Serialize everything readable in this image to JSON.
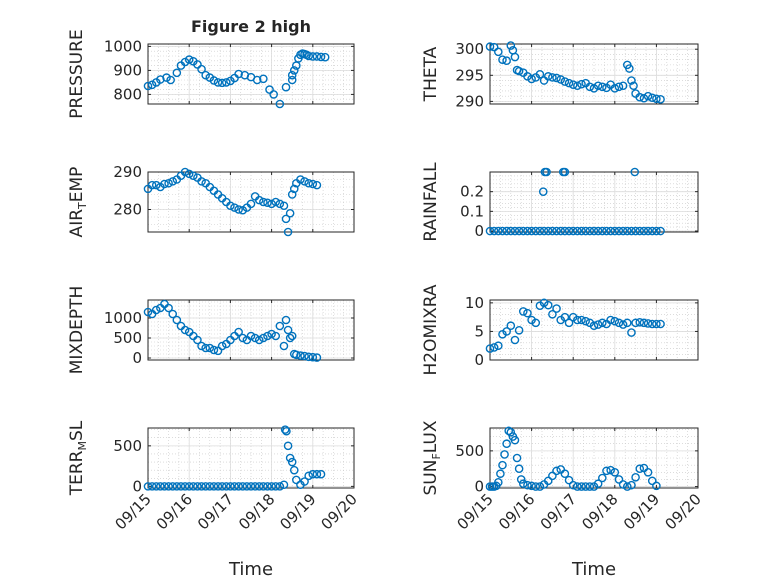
{
  "figure": {
    "title": "Figure 2 high",
    "marker": "circle",
    "colors": {
      "marker": "#0072BD",
      "axes": "#262626",
      "grid": "#c8c8c8",
      "background": "#ffffff"
    }
  },
  "chart_data": [
    {
      "type": "scatter",
      "title": "Figure 2 high",
      "ylabel": "PRESSURE",
      "ylabel_parts": [
        {
          "t": "PRESSURE",
          "sub": false
        }
      ],
      "xlim": [
        0,
        5
      ],
      "ylim": [
        760,
        1010
      ],
      "yticks": [
        800,
        900,
        1000
      ],
      "xticks": [],
      "grid": true,
      "x": [
        0,
        0.1,
        0.2,
        0.3,
        0.45,
        0.55,
        0.7,
        0.8,
        0.9,
        1.0,
        1.1,
        1.2,
        1.3,
        1.4,
        1.5,
        1.6,
        1.7,
        1.8,
        1.9,
        2.0,
        2.1,
        2.2,
        2.35,
        2.5,
        2.65,
        2.8,
        2.95,
        3.05,
        3.2,
        3.35,
        3.5,
        3.5,
        3.55,
        3.6,
        3.65,
        3.7,
        3.75,
        3.8,
        3.85,
        3.9,
        4.0,
        4.1,
        4.2,
        4.3
      ],
      "series": [
        {
          "values": [
            835,
            840,
            850,
            862,
            870,
            860,
            890,
            920,
            935,
            945,
            938,
            925,
            905,
            880,
            870,
            858,
            850,
            848,
            850,
            856,
            868,
            885,
            880,
            872,
            860,
            865,
            820,
            800,
            760,
            830,
            860,
            880,
            900,
            920,
            950,
            965,
            970,
            968,
            965,
            960,
            958,
            958,
            956,
            955
          ]
        }
      ]
    },
    {
      "type": "scatter",
      "title": "",
      "ylabel": "THETA",
      "ylabel_parts": [
        {
          "t": "THETA",
          "sub": false
        }
      ],
      "xlim": [
        0,
        5
      ],
      "ylim": [
        289.5,
        301
      ],
      "yticks": [
        290,
        295,
        300
      ],
      "xticks": [],
      "grid": true,
      "x": [
        0,
        0.1,
        0.2,
        0.3,
        0.4,
        0.5,
        0.55,
        0.6,
        0.65,
        0.7,
        0.8,
        0.9,
        1.0,
        1.1,
        1.2,
        1.3,
        1.4,
        1.5,
        1.6,
        1.7,
        1.8,
        1.9,
        2.0,
        2.1,
        2.2,
        2.3,
        2.4,
        2.5,
        2.6,
        2.7,
        2.8,
        2.9,
        3.0,
        3.1,
        3.2,
        3.3,
        3.35,
        3.4,
        3.45,
        3.5,
        3.6,
        3.7,
        3.8,
        3.9,
        4.0,
        4.1
      ],
      "series": [
        {
          "values": [
            300.5,
            300.4,
            299.5,
            298,
            297.8,
            300.7,
            299.8,
            298.5,
            296,
            295.8,
            295.5,
            294.8,
            294.3,
            294.6,
            295.2,
            294,
            294.8,
            294.6,
            294.5,
            294.2,
            293.8,
            293.5,
            293.2,
            293,
            293.3,
            293.5,
            292.8,
            292.5,
            293,
            292.8,
            292.6,
            293.2,
            292.5,
            292.8,
            293,
            297,
            296.3,
            294,
            293,
            291.5,
            290.8,
            290.6,
            291,
            290.7,
            290.5,
            290.4
          ]
        }
      ]
    },
    {
      "type": "scatter",
      "title": "",
      "ylabel": "AIR_TEMP",
      "ylabel_parts": [
        {
          "t": "AIR",
          "sub": false
        },
        {
          "t": "T",
          "sub": true
        },
        {
          "t": "EMP",
          "sub": false
        }
      ],
      "xlim": [
        0,
        5
      ],
      "ylim": [
        274,
        290
      ],
      "yticks": [
        280,
        290
      ],
      "xticks": [],
      "grid": true,
      "x": [
        0,
        0.1,
        0.2,
        0.3,
        0.4,
        0.5,
        0.6,
        0.7,
        0.8,
        0.9,
        1.0,
        1.1,
        1.2,
        1.3,
        1.4,
        1.5,
        1.6,
        1.7,
        1.8,
        1.9,
        2.0,
        2.1,
        2.2,
        2.3,
        2.4,
        2.5,
        2.6,
        2.7,
        2.8,
        2.9,
        3.0,
        3.1,
        3.2,
        3.3,
        3.35,
        3.4,
        3.45,
        3.5,
        3.55,
        3.6,
        3.7,
        3.8,
        3.9,
        4.0,
        4.1
      ],
      "series": [
        {
          "values": [
            285.5,
            286.5,
            286.5,
            286,
            286.8,
            287,
            287.5,
            288,
            289,
            290,
            289.5,
            289,
            288.5,
            287.5,
            287,
            286,
            285,
            284,
            283,
            282,
            281,
            280.5,
            280,
            279.8,
            280.5,
            281.5,
            283.5,
            282.5,
            282,
            281.8,
            281.5,
            282,
            281.5,
            281,
            277.5,
            274,
            279,
            284,
            285.5,
            287,
            288,
            287.5,
            287,
            286.8,
            286.5
          ]
        }
      ]
    },
    {
      "type": "scatter",
      "title": "",
      "ylabel": "RAINFALL",
      "ylabel_parts": [
        {
          "t": "RAINFALL",
          "sub": false
        }
      ],
      "xlim": [
        0,
        5
      ],
      "ylim": [
        -0.005,
        0.3
      ],
      "yticks": [
        0,
        0.1,
        0.2
      ],
      "xticks": [],
      "grid": true,
      "x": [
        0,
        0.1,
        0.2,
        0.3,
        0.4,
        0.5,
        0.6,
        0.7,
        0.8,
        0.9,
        1.0,
        1.1,
        1.2,
        1.3,
        1.4,
        1.5,
        1.6,
        1.7,
        1.8,
        1.9,
        2.0,
        2.1,
        2.2,
        2.3,
        2.4,
        2.5,
        2.6,
        2.7,
        2.8,
        2.9,
        3.0,
        3.1,
        3.2,
        3.3,
        3.4,
        3.5,
        3.6,
        3.7,
        3.8,
        3.9,
        4.0,
        4.1,
        1.28,
        1.32,
        1.36,
        1.76,
        1.8,
        3.48
      ],
      "series": [
        {
          "values": [
            0,
            0,
            0,
            0,
            0,
            0,
            0,
            0,
            0,
            0,
            0,
            0,
            0,
            0,
            0,
            0,
            0,
            0,
            0,
            0,
            0,
            0,
            0,
            0,
            0,
            0,
            0,
            0,
            0,
            0,
            0,
            0,
            0,
            0,
            0,
            0,
            0,
            0,
            0,
            0,
            0,
            0,
            0.2,
            0.3,
            0.3,
            0.3,
            0.3,
            0.3
          ]
        }
      ]
    },
    {
      "type": "scatter",
      "title": "",
      "ylabel": "MIXDEPTH",
      "ylabel_parts": [
        {
          "t": "MIXDEPTH",
          "sub": false
        }
      ],
      "xlim": [
        0,
        5
      ],
      "ylim": [
        -50,
        1450
      ],
      "yticks": [
        0,
        500,
        1000
      ],
      "xticks": [],
      "grid": true,
      "x": [
        0,
        0.1,
        0.2,
        0.3,
        0.4,
        0.5,
        0.6,
        0.7,
        0.8,
        0.9,
        1.0,
        1.1,
        1.2,
        1.3,
        1.4,
        1.5,
        1.6,
        1.7,
        1.8,
        1.9,
        2.0,
        2.1,
        2.2,
        2.3,
        2.4,
        2.5,
        2.6,
        2.7,
        2.8,
        2.9,
        3.0,
        3.1,
        3.2,
        3.3,
        3.35,
        3.4,
        3.45,
        3.5,
        3.55,
        3.6,
        3.7,
        3.8,
        3.9,
        4.0,
        4.1
      ],
      "series": [
        {
          "values": [
            1150,
            1100,
            1200,
            1250,
            1350,
            1250,
            1100,
            950,
            800,
            700,
            650,
            550,
            450,
            300,
            250,
            250,
            200,
            180,
            300,
            350,
            450,
            550,
            650,
            500,
            450,
            550,
            500,
            450,
            500,
            550,
            600,
            550,
            800,
            300,
            950,
            700,
            500,
            550,
            100,
            80,
            60,
            50,
            30,
            20,
            10
          ]
        }
      ]
    },
    {
      "type": "scatter",
      "title": "",
      "ylabel": "H2OMIXRA",
      "ylabel_parts": [
        {
          "t": "H2OMIXRA",
          "sub": false
        }
      ],
      "xlim": [
        0,
        5
      ],
      "ylim": [
        0,
        10.5
      ],
      "yticks": [
        0,
        5,
        10
      ],
      "xticks": [],
      "grid": true,
      "x": [
        0,
        0.1,
        0.2,
        0.3,
        0.4,
        0.5,
        0.6,
        0.7,
        0.8,
        0.9,
        1.0,
        1.1,
        1.2,
        1.3,
        1.4,
        1.5,
        1.6,
        1.7,
        1.8,
        1.9,
        2.0,
        2.1,
        2.2,
        2.3,
        2.4,
        2.5,
        2.6,
        2.7,
        2.8,
        2.9,
        3.0,
        3.1,
        3.2,
        3.3,
        3.4,
        3.5,
        3.6,
        3.7,
        3.8,
        3.9,
        4.0,
        4.1
      ],
      "series": [
        {
          "values": [
            2,
            2.2,
            2.5,
            4.5,
            5,
            6,
            3.5,
            5.2,
            8.5,
            8.2,
            7,
            6.5,
            9.5,
            10,
            9.6,
            8,
            9,
            7,
            7.5,
            6.5,
            7.5,
            7,
            7,
            6.8,
            6.5,
            6,
            6.2,
            6.5,
            6.3,
            7,
            6.8,
            6.5,
            6.2,
            6.5,
            4.8,
            6.5,
            6.6,
            6.5,
            6.4,
            6.3,
            6.3,
            6.3
          ]
        }
      ]
    },
    {
      "type": "scatter",
      "title": "",
      "ylabel": "TERR_MSL",
      "ylabel_parts": [
        {
          "t": "TERR",
          "sub": false
        },
        {
          "t": "M",
          "sub": true
        },
        {
          "t": "SL",
          "sub": false
        }
      ],
      "xlim": [
        0,
        5
      ],
      "ylim": [
        -20,
        720
      ],
      "yticks": [
        0,
        500
      ],
      "xticks": [
        "09/15",
        "09/16",
        "09/17",
        "09/18",
        "09/19",
        "09/20"
      ],
      "xlabel": "Time",
      "grid": true,
      "x": [
        0,
        0.1,
        0.2,
        0.3,
        0.4,
        0.5,
        0.6,
        0.7,
        0.8,
        0.9,
        1.0,
        1.1,
        1.2,
        1.3,
        1.4,
        1.5,
        1.6,
        1.7,
        1.8,
        1.9,
        2.0,
        2.1,
        2.2,
        2.3,
        2.4,
        2.5,
        2.6,
        2.7,
        2.8,
        2.9,
        3.0,
        3.1,
        3.2,
        3.3,
        3.33,
        3.36,
        3.4,
        3.45,
        3.5,
        3.55,
        3.6,
        3.7,
        3.8,
        3.9,
        4.0,
        4.1,
        4.2
      ],
      "series": [
        {
          "values": [
            0,
            0,
            0,
            0,
            0,
            0,
            0,
            0,
            0,
            0,
            0,
            0,
            0,
            0,
            0,
            0,
            0,
            0,
            0,
            0,
            0,
            0,
            0,
            0,
            0,
            0,
            0,
            0,
            0,
            0,
            0,
            0,
            0,
            20,
            700,
            680,
            500,
            350,
            300,
            200,
            80,
            20,
            60,
            130,
            150,
            150,
            150
          ]
        }
      ]
    },
    {
      "type": "scatter",
      "title": "",
      "ylabel": "SUN_FLUX",
      "ylabel_parts": [
        {
          "t": "SUN",
          "sub": false
        },
        {
          "t": "F",
          "sub": true
        },
        {
          "t": "LUX",
          "sub": false
        }
      ],
      "xlim": [
        0,
        5
      ],
      "ylim": [
        -20,
        820
      ],
      "yticks": [
        0,
        500
      ],
      "xticks": [
        "09/15",
        "09/16",
        "09/17",
        "09/18",
        "09/19",
        "09/20"
      ],
      "xlabel": "Time",
      "grid": true,
      "x": [
        0,
        0.05,
        0.1,
        0.15,
        0.2,
        0.25,
        0.3,
        0.35,
        0.4,
        0.45,
        0.5,
        0.55,
        0.6,
        0.65,
        0.7,
        0.75,
        0.8,
        0.9,
        1.0,
        1.1,
        1.2,
        1.3,
        1.4,
        1.5,
        1.6,
        1.7,
        1.8,
        1.9,
        2.0,
        2.1,
        2.2,
        2.3,
        2.4,
        2.5,
        2.6,
        2.7,
        2.8,
        2.9,
        3.0,
        3.1,
        3.2,
        3.3,
        3.4,
        3.5,
        3.6,
        3.7,
        3.8,
        3.9,
        4.0
      ],
      "series": [
        {
          "values": [
            0,
            0,
            0,
            10,
            60,
            180,
            300,
            450,
            600,
            780,
            760,
            700,
            650,
            400,
            250,
            100,
            40,
            20,
            10,
            0,
            0,
            30,
            80,
            150,
            220,
            240,
            180,
            90,
            20,
            0,
            0,
            0,
            0,
            0,
            40,
            120,
            220,
            230,
            200,
            100,
            30,
            0,
            20,
            130,
            250,
            260,
            200,
            80,
            10
          ]
        }
      ]
    }
  ]
}
